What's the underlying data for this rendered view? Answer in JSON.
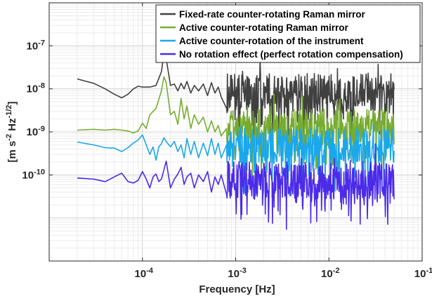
{
  "chart_data": {
    "type": "line",
    "xscale": "log",
    "yscale": "log",
    "xlim": [
      1e-05,
      0.1
    ],
    "ylim": [
      1e-12,
      1e-06
    ],
    "grid": true,
    "legend_position": "top-right",
    "xlabel": "Frequency  [Hz]",
    "ylabel": "[m s",
    "ylabel_sup1": "-2",
    "ylabel_mid": " Hz",
    "ylabel_sup2": "-1/2",
    "ylabel_end": "]",
    "x_tick_values": [
      0.0001,
      0.001,
      0.01,
      0.1
    ],
    "x_tick_labels": [
      {
        "base": "10",
        "exp": "-4"
      },
      {
        "base": "10",
        "exp": "-3"
      },
      {
        "base": "10",
        "exp": "-2"
      },
      {
        "base": "10",
        "exp": "-1"
      }
    ],
    "y_tick_values": [
      1e-10,
      1e-09,
      1e-08,
      1e-07
    ],
    "y_tick_labels": [
      {
        "base": "10",
        "exp": "-10"
      },
      {
        "base": "10",
        "exp": "-9"
      },
      {
        "base": "10",
        "exp": "-8"
      },
      {
        "base": "10",
        "exp": "-7"
      }
    ],
    "series": [
      {
        "name": "Fixed-rate counter-rotating Raman mirror",
        "color": "#404040",
        "points": [
          [
            2e-05,
            1.7e-08
          ],
          [
            3e-05,
            1.35e-08
          ],
          [
            4e-05,
            1e-08
          ],
          [
            5e-05,
            7.5e-09
          ],
          [
            6e-05,
            6.2e-09
          ],
          [
            7e-05,
            7.5e-09
          ],
          [
            8e-05,
            1e-08
          ],
          [
            9e-05,
            1.15e-08
          ],
          [
            0.0001,
            1.1e-08
          ],
          [
            0.00012,
            1.1e-08
          ],
          [
            0.00014,
            1.2e-08
          ],
          [
            0.00016,
            2.5e-08
          ],
          [
            0.00017,
            6.5e-08
          ],
          [
            0.00018,
            5e-08
          ],
          [
            0.0002,
            1.2e-08
          ],
          [
            0.00022,
            1.3e-08
          ],
          [
            0.00024,
            9e-09
          ],
          [
            0.00026,
            1.35e-08
          ],
          [
            0.00028,
            1e-08
          ],
          [
            0.0003,
            1.5e-08
          ],
          [
            0.00033,
            8e-09
          ],
          [
            0.00036,
            1.2e-08
          ],
          [
            0.0004,
            9e-09
          ],
          [
            0.00045,
            1.3e-08
          ],
          [
            0.0005,
            7e-09
          ],
          [
            0.00055,
            1.4e-08
          ],
          [
            0.0006,
            8e-09
          ],
          [
            0.00065,
            1.1e-08
          ],
          [
            0.0007,
            6.5e-09
          ],
          [
            0.0008,
            3.5e-09
          ]
        ],
        "noise": {
          "start": 0.0008,
          "end": 0.05,
          "center": 8e-09,
          "spread": 0.85
        }
      },
      {
        "name": "Active counter-rotating Raman mirror",
        "color": "#77AC30",
        "points": [
          [
            2e-05,
            1.1e-09
          ],
          [
            3e-05,
            1.15e-09
          ],
          [
            4e-05,
            1.1e-09
          ],
          [
            5e-05,
            1.15e-09
          ],
          [
            6e-05,
            1.1e-09
          ],
          [
            7e-05,
            1.05e-09
          ],
          [
            8e-05,
            9.5e-10
          ],
          [
            9e-05,
            1.05e-09
          ],
          [
            0.0001,
            1.6e-09
          ],
          [
            0.00011,
            1.2e-09
          ],
          [
            0.00012,
            2.5e-09
          ],
          [
            0.00014,
            3.5e-09
          ],
          [
            0.00016,
            9e-09
          ],
          [
            0.00017,
            1.9e-08
          ],
          [
            0.00018,
            1.4e-08
          ],
          [
            0.0002,
            2.5e-09
          ],
          [
            0.00022,
            3e-09
          ],
          [
            0.00024,
            1.5e-09
          ],
          [
            0.00026,
            6e-09
          ],
          [
            0.00028,
            2e-09
          ],
          [
            0.0003,
            4e-09
          ],
          [
            0.00033,
            1.2e-09
          ],
          [
            0.00036,
            2.5e-09
          ],
          [
            0.0004,
            1.5e-09
          ],
          [
            0.00045,
            2.2e-09
          ],
          [
            0.0005,
            1e-09
          ],
          [
            0.00055,
            1.8e-09
          ],
          [
            0.0006,
            1e-09
          ],
          [
            0.00065,
            1.4e-09
          ],
          [
            0.0007,
            8e-10
          ],
          [
            0.0008,
            1.2e-09
          ]
        ],
        "noise": {
          "start": 0.0008,
          "end": 0.05,
          "center": 1.3e-09,
          "spread": 0.75
        }
      },
      {
        "name": "Active counter-rotation of the instrument",
        "color": "#1AA7EC",
        "points": [
          [
            2e-05,
            5.8e-10
          ],
          [
            3e-05,
            5e-10
          ],
          [
            4e-05,
            4.3e-10
          ],
          [
            5e-05,
            4.2e-10
          ],
          [
            6e-05,
            3.5e-10
          ],
          [
            7e-05,
            4.3e-10
          ],
          [
            8e-05,
            5.5e-10
          ],
          [
            9e-05,
            6.5e-10
          ],
          [
            0.0001,
            8.5e-10
          ],
          [
            0.00011,
            5e-10
          ],
          [
            0.00012,
            3e-10
          ],
          [
            0.00013,
            4.5e-10
          ],
          [
            0.00014,
            2.2e-10
          ],
          [
            0.00015,
            4.5e-10
          ],
          [
            0.00016,
            5.3e-10
          ],
          [
            0.00017,
            7.3e-10
          ],
          [
            0.00018,
            6e-10
          ],
          [
            0.0002,
            4.5e-10
          ],
          [
            0.00022,
            6e-10
          ],
          [
            0.00024,
            3.5e-10
          ],
          [
            0.00026,
            5e-10
          ],
          [
            0.00028,
            2.5e-10
          ],
          [
            0.0003,
            7e-10
          ],
          [
            0.00033,
            3e-10
          ],
          [
            0.00036,
            6e-10
          ],
          [
            0.0004,
            2.5e-10
          ],
          [
            0.00045,
            5.5e-10
          ],
          [
            0.0005,
            2.8e-10
          ],
          [
            0.00055,
            7e-10
          ],
          [
            0.0006,
            3e-10
          ],
          [
            0.00065,
            5.5e-10
          ],
          [
            0.0007,
            2.5e-10
          ],
          [
            0.0008,
            5e-10
          ]
        ],
        "noise": {
          "start": 0.0008,
          "end": 0.05,
          "center": 4.8e-10,
          "spread": 0.75
        }
      },
      {
        "name": "No rotation effect (perfect rotation compensation)",
        "color": "#4B2BE8",
        "points": [
          [
            2e-05,
            8.5e-11
          ],
          [
            3e-05,
            8e-11
          ],
          [
            4e-05,
            7e-11
          ],
          [
            5e-05,
            9e-11
          ],
          [
            6e-05,
            1.1e-10
          ],
          [
            7e-05,
            7e-11
          ],
          [
            8e-05,
            6.5e-11
          ],
          [
            9e-05,
            7.5e-11
          ],
          [
            0.0001,
            1.2e-10
          ],
          [
            0.00011,
            8e-11
          ],
          [
            0.00012,
            5e-11
          ],
          [
            0.00013,
            9e-11
          ],
          [
            0.00014,
            1.05e-10
          ],
          [
            0.00015,
            7e-11
          ],
          [
            0.00016,
            8e-11
          ],
          [
            0.00018,
            2.1e-10
          ],
          [
            0.0002,
            5e-11
          ],
          [
            0.00022,
            8e-11
          ],
          [
            0.00024,
            1.05e-10
          ],
          [
            0.00026,
            1.5e-10
          ],
          [
            0.00028,
            6e-11
          ],
          [
            0.0003,
            9e-11
          ],
          [
            0.00033,
            1.1e-10
          ],
          [
            0.00036,
            5e-11
          ],
          [
            0.0004,
            1e-10
          ],
          [
            0.00045,
            7e-11
          ],
          [
            0.0005,
            1.2e-10
          ],
          [
            0.00055,
            4e-11
          ],
          [
            0.0006,
            9e-11
          ],
          [
            0.00065,
            6e-11
          ],
          [
            0.0007,
            1e-10
          ],
          [
            0.0008,
            3.5e-11
          ]
        ],
        "noise": {
          "start": 0.0008,
          "end": 0.05,
          "center": 7.5e-11,
          "spread": 0.8
        }
      }
    ]
  }
}
